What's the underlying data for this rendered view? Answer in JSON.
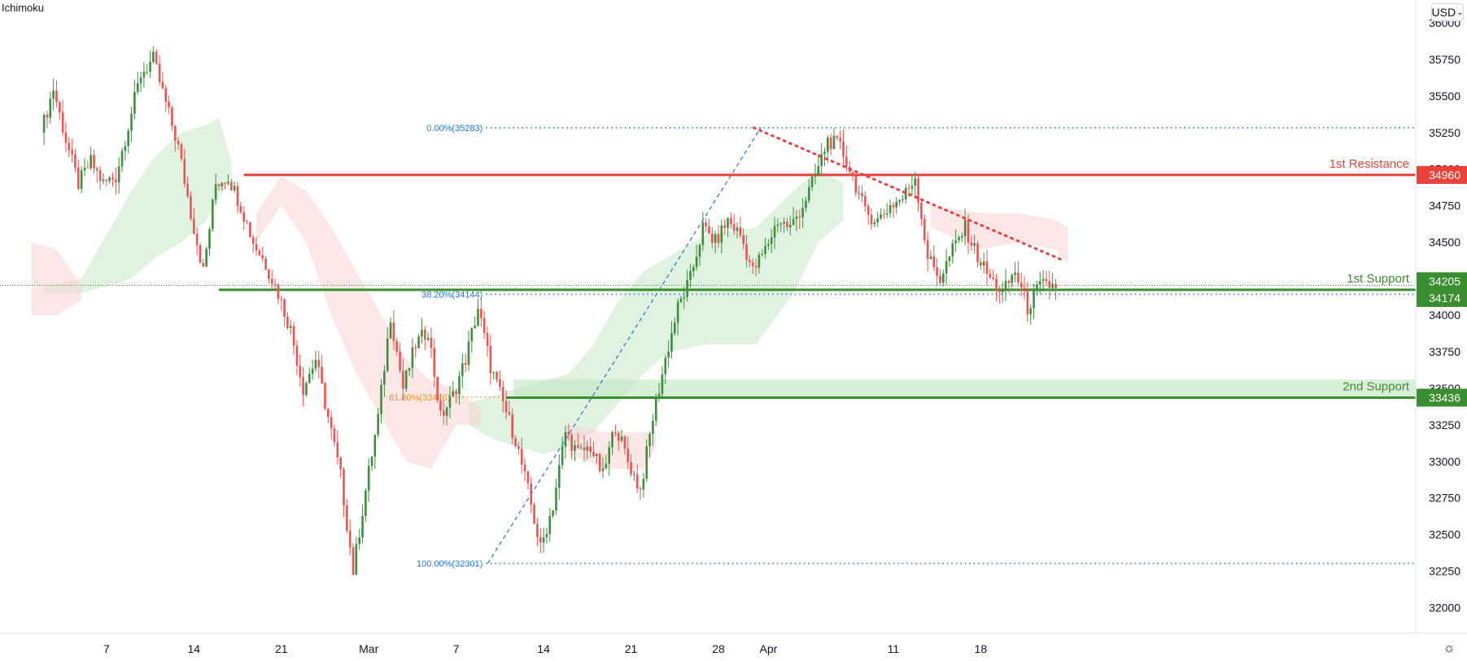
{
  "indicator_label": "Ichimoku",
  "currency_label": "USD",
  "currency_caret": "⌄",
  "settings_icon": "gear-icon",
  "settings_glyph": "☼",
  "colors": {
    "up": "#26a69a",
    "up_candle": "#3d8f3d",
    "down": "#ef5350",
    "resistance": "#e8423a",
    "support": "#3b8e2f",
    "fib": "#2675d9",
    "fib_618": "#e8912d",
    "trend": "#e84141",
    "cloud_green": "#c7e8c7",
    "cloud_red": "#f9d4d4",
    "axis_text": "#131722"
  },
  "chart_data": {
    "type": "candlestick",
    "title": "",
    "xlabel": "",
    "ylabel": "",
    "ylim": [
      31800,
      36100
    ],
    "y_ticks": [
      36000,
      35750,
      35500,
      35250,
      35000,
      34750,
      34500,
      34250,
      34000,
      33750,
      33500,
      33250,
      33000,
      32750,
      32500,
      32250,
      32000
    ],
    "x_ticks": [
      {
        "label": "7",
        "date": "2022-02-07"
      },
      {
        "label": "14",
        "date": "2022-02-14"
      },
      {
        "label": "21",
        "date": "2022-02-21"
      },
      {
        "label": "Mar",
        "date": "2022-02-28"
      },
      {
        "label": "7",
        "date": "2022-03-07"
      },
      {
        "label": "14",
        "date": "2022-03-14"
      },
      {
        "label": "21",
        "date": "2022-03-21"
      },
      {
        "label": "28",
        "date": "2022-03-28"
      },
      {
        "label": "Apr",
        "date": "2022-04-01"
      },
      {
        "label": "11",
        "date": "2022-04-11"
      },
      {
        "label": "18",
        "date": "2022-04-18"
      }
    ],
    "price_path": [
      [
        "2022-02-02",
        35250
      ],
      [
        "2022-02-03",
        35550
      ],
      [
        "2022-02-04",
        35200
      ],
      [
        "2022-02-05",
        34900
      ],
      [
        "2022-02-06",
        35050
      ],
      [
        "2022-02-07",
        34900
      ],
      [
        "2022-02-08",
        34950
      ],
      [
        "2022-02-09",
        35300
      ],
      [
        "2022-02-10",
        35650
      ],
      [
        "2022-02-11",
        35750
      ],
      [
        "2022-02-12",
        35450
      ],
      [
        "2022-02-13",
        35150
      ],
      [
        "2022-02-14",
        34700
      ],
      [
        "2022-02-15",
        34300
      ],
      [
        "2022-02-16",
        34900
      ],
      [
        "2022-02-17",
        34950
      ],
      [
        "2022-02-18",
        34750
      ],
      [
        "2022-02-19",
        34500
      ],
      [
        "2022-02-20",
        34350
      ],
      [
        "2022-02-21",
        34150
      ],
      [
        "2022-02-22",
        33900
      ],
      [
        "2022-02-23",
        33500
      ],
      [
        "2022-02-24",
        33700
      ],
      [
        "2022-02-25",
        33300
      ],
      [
        "2022-02-26",
        32900
      ],
      [
        "2022-02-27",
        32250
      ],
      [
        "2022-02-28",
        32800
      ],
      [
        "2022-03-01",
        33300
      ],
      [
        "2022-03-02",
        34000
      ],
      [
        "2022-03-03",
        33500
      ],
      [
        "2022-03-04",
        33800
      ],
      [
        "2022-03-05",
        33900
      ],
      [
        "2022-03-06",
        33300
      ],
      [
        "2022-03-07",
        33450
      ],
      [
        "2022-03-08",
        33700
      ],
      [
        "2022-03-09",
        34050
      ],
      [
        "2022-03-10",
        33650
      ],
      [
        "2022-03-11",
        33400
      ],
      [
        "2022-03-12",
        33150
      ],
      [
        "2022-03-13",
        32800
      ],
      [
        "2022-03-14",
        32400
      ],
      [
        "2022-03-15",
        32700
      ],
      [
        "2022-03-16",
        33200
      ],
      [
        "2022-03-17",
        33050
      ],
      [
        "2022-03-18",
        33100
      ],
      [
        "2022-03-19",
        32900
      ],
      [
        "2022-03-20",
        33250
      ],
      [
        "2022-03-21",
        33000
      ],
      [
        "2022-03-22",
        32800
      ],
      [
        "2022-03-23",
        33300
      ],
      [
        "2022-03-24",
        33700
      ],
      [
        "2022-03-25",
        34050
      ],
      [
        "2022-03-26",
        34250
      ],
      [
        "2022-03-27",
        34600
      ],
      [
        "2022-03-28",
        34500
      ],
      [
        "2022-03-29",
        34650
      ],
      [
        "2022-03-30",
        34550
      ],
      [
        "2022-03-31",
        34300
      ],
      [
        "2022-04-01",
        34450
      ],
      [
        "2022-04-02",
        34650
      ],
      [
        "2022-04-03",
        34600
      ],
      [
        "2022-04-04",
        34750
      ],
      [
        "2022-04-05",
        34950
      ],
      [
        "2022-04-06",
        35200
      ],
      [
        "2022-04-07",
        35150
      ],
      [
        "2022-04-08",
        34950
      ],
      [
        "2022-04-09",
        34700
      ],
      [
        "2022-04-10",
        34650
      ],
      [
        "2022-04-11",
        34750
      ],
      [
        "2022-04-12",
        34800
      ],
      [
        "2022-04-13",
        34950
      ],
      [
        "2022-04-14",
        34400
      ],
      [
        "2022-04-15",
        34250
      ],
      [
        "2022-04-16",
        34450
      ],
      [
        "2022-04-17",
        34600
      ],
      [
        "2022-04-18",
        34400
      ],
      [
        "2022-04-19",
        34250
      ],
      [
        "2022-04-20",
        34150
      ],
      [
        "2022-04-21",
        34300
      ],
      [
        "2022-04-22",
        34050
      ],
      [
        "2022-04-23",
        34200
      ],
      [
        "2022-04-24",
        34205
      ]
    ],
    "levels": [
      {
        "name": "1st Resistance",
        "value": 34960,
        "label": "34960",
        "color": "resistance"
      },
      {
        "name": "1st Support",
        "value": 34174,
        "label": "34174",
        "color": "support"
      },
      {
        "name": "2nd Support",
        "value": 33436,
        "label": "33436",
        "color": "support"
      }
    ],
    "current_price": {
      "value": 34205,
      "label": "34205"
    },
    "fibonacci": [
      {
        "label": "0.00%(35283)",
        "value": 35283
      },
      {
        "label": "38.20%(34144)",
        "value": 34144
      },
      {
        "label": "61.80%(33440)",
        "value": 33440
      },
      {
        "label": "100.00%(32301)",
        "value": 32301
      }
    ],
    "fib_anchor": {
      "start": [
        "2022-03-09",
        32301
      ],
      "end": [
        "2022-03-31",
        35283
      ]
    },
    "trendline": {
      "start": [
        "2022-04-01",
        35283
      ],
      "end": [
        "2022-04-25",
        34380
      ]
    },
    "support_zone": {
      "from": 33436,
      "to": 33560
    },
    "cloud_green": [
      [
        "2022-02-02",
        34150,
        34200
      ],
      [
        "2022-02-05",
        34150,
        34250
      ],
      [
        "2022-02-07",
        34200,
        34550
      ],
      [
        "2022-02-09",
        34250,
        34850
      ],
      [
        "2022-02-11",
        34400,
        35100
      ],
      [
        "2022-02-13",
        34500,
        35250
      ],
      [
        "2022-02-15",
        34650,
        35300
      ],
      [
        "2022-02-16",
        34800,
        35350
      ],
      [
        "2022-02-17",
        34950,
        35050
      ],
      [
        "2022-03-08",
        33250,
        33400
      ],
      [
        "2022-03-10",
        33150,
        33450
      ],
      [
        "2022-03-12",
        33100,
        33500
      ],
      [
        "2022-03-14",
        33050,
        33550
      ],
      [
        "2022-03-16",
        33100,
        33600
      ],
      [
        "2022-03-18",
        33200,
        33800
      ],
      [
        "2022-03-20",
        33400,
        34100
      ],
      [
        "2022-03-22",
        33600,
        34300
      ],
      [
        "2022-03-24",
        33750,
        34400
      ],
      [
        "2022-03-27",
        33800,
        34550
      ],
      [
        "2022-03-31",
        33800,
        34600
      ],
      [
        "2022-04-03",
        34150,
        34850
      ],
      [
        "2022-04-05",
        34500,
        35000
      ],
      [
        "2022-04-07",
        34650,
        34900
      ]
    ],
    "cloud_red": [
      [
        "2022-02-01",
        34000,
        34500
      ],
      [
        "2022-02-03",
        34000,
        34450
      ],
      [
        "2022-02-05",
        34100,
        34200
      ],
      [
        "2022-02-19",
        34500,
        34700
      ],
      [
        "2022-02-21",
        34750,
        34950
      ],
      [
        "2022-02-23",
        34500,
        34850
      ],
      [
        "2022-02-25",
        34000,
        34600
      ],
      [
        "2022-02-27",
        33600,
        34300
      ],
      [
        "2022-03-01",
        33300,
        34000
      ],
      [
        "2022-03-03",
        33000,
        33700
      ],
      [
        "2022-03-05",
        32950,
        33550
      ],
      [
        "2022-03-07",
        33250,
        33500
      ],
      [
        "2022-03-09",
        33250,
        33350
      ],
      [
        "2022-03-16",
        33050,
        33250
      ],
      [
        "2022-03-19",
        32950,
        33200
      ],
      [
        "2022-03-22",
        32950,
        33200
      ],
      [
        "2022-03-23",
        33100,
        33200
      ],
      [
        "2022-04-14",
        34600,
        34750
      ],
      [
        "2022-04-18",
        34450,
        34700
      ],
      [
        "2022-04-21",
        34500,
        34700
      ],
      [
        "2022-04-24",
        34450,
        34650
      ],
      [
        "2022-04-25",
        34350,
        34600
      ]
    ]
  }
}
